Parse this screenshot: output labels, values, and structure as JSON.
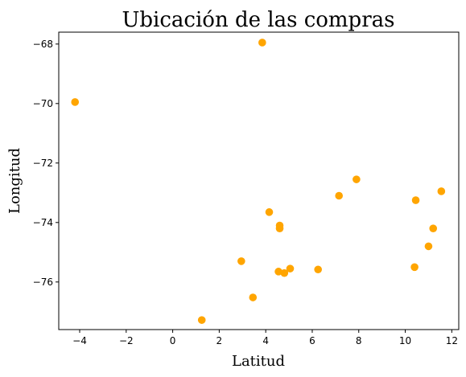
{
  "chart_data": {
    "type": "scatter",
    "title": "Ubicación de las compras",
    "xlabel": "Latitud",
    "ylabel": "Longitud",
    "xlim": [
      -4.9,
      12.3
    ],
    "ylim": [
      -77.6,
      -67.6
    ],
    "x_ticks": [
      -4,
      -2,
      0,
      2,
      4,
      6,
      8,
      10,
      12
    ],
    "y_ticks": [
      -68,
      -70,
      -72,
      -74,
      -76
    ],
    "grid": false,
    "point_color": "#ffa500",
    "points": [
      {
        "x": 3.85,
        "y": -67.95
      },
      {
        "x": -4.2,
        "y": -69.95
      },
      {
        "x": 7.9,
        "y": -72.55
      },
      {
        "x": 7.15,
        "y": -73.1
      },
      {
        "x": 4.15,
        "y": -73.65
      },
      {
        "x": 4.6,
        "y": -74.1
      },
      {
        "x": 4.6,
        "y": -74.2
      },
      {
        "x": 11.55,
        "y": -72.95
      },
      {
        "x": 10.45,
        "y": -73.25
      },
      {
        "x": 11.2,
        "y": -74.2
      },
      {
        "x": 11.0,
        "y": -74.8
      },
      {
        "x": 10.4,
        "y": -75.5
      },
      {
        "x": 2.95,
        "y": -75.3
      },
      {
        "x": 4.55,
        "y": -75.65
      },
      {
        "x": 4.8,
        "y": -75.7
      },
      {
        "x": 5.05,
        "y": -75.55
      },
      {
        "x": 6.25,
        "y": -75.58
      },
      {
        "x": 3.45,
        "y": -76.52
      },
      {
        "x": 1.25,
        "y": -77.28
      }
    ]
  }
}
